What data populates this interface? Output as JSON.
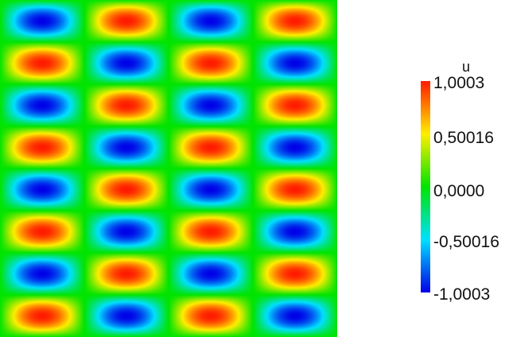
{
  "chart_data": {
    "type": "heatmap",
    "field": "sin(4*pi*x) * sin(8*pi*y) sampled on the unit square",
    "grid": {
      "columns": 4,
      "rows": 8
    },
    "color_range": [
      -1.0003,
      1.0003
    ],
    "colormap": [
      "#0000ff",
      "#00ffff",
      "#00dd00",
      "#ffff00",
      "#ff0000"
    ],
    "colorbar": {
      "title": "u",
      "tick_labels": [
        "1,0003",
        "0,50016",
        "0,0000",
        "-0,50016",
        "-1,0003"
      ],
      "tick_values": [
        1.0003,
        0.50016,
        0,
        -0.50016,
        -1.0003
      ]
    }
  }
}
